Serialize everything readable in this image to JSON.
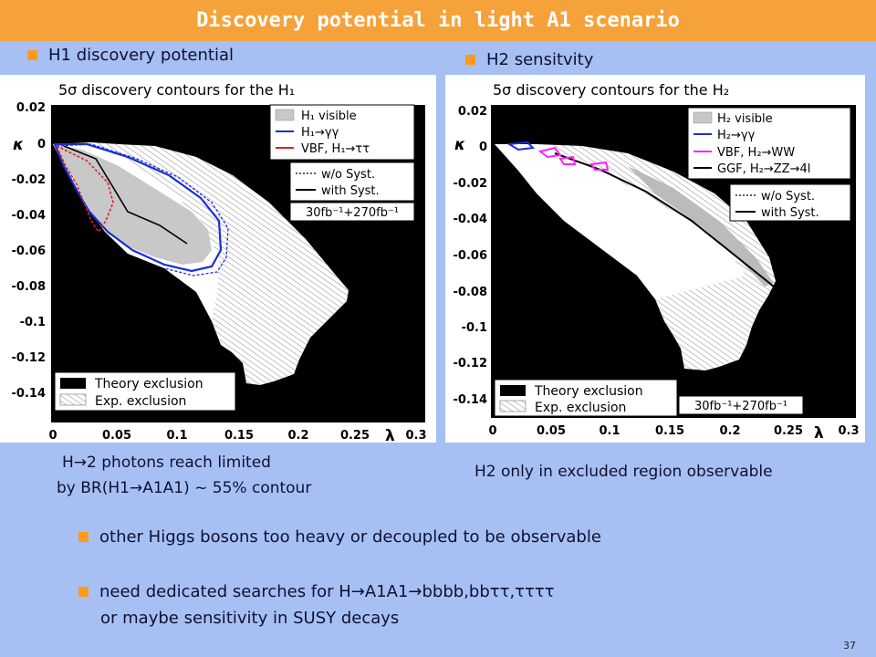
{
  "slide": {
    "title": "Discovery potential in light A1 scenario",
    "left_heading": "H1 discovery potential",
    "right_heading": "H2 sensitvity",
    "left_caption_1": "H→2 photons  reach limited",
    "left_caption_2": "by BR(H1→A1A1) ~ 55% contour",
    "right_caption": "H2 only in excluded region observable",
    "bullet_1": "other Higgs bosons too heavy or decoupled to be observable",
    "bullet_2_line1": "need dedicated searches for H→A1A1→bbbb,bbττ,ττττ",
    "bullet_2_line2": "or maybe sensitivity in SUSY decays",
    "page_number": "37"
  },
  "colors": {
    "accent": "#f5a23a",
    "background": "#a7c0f4",
    "bullet": "#ff9a1a",
    "blue_curve": "#1a2fd6",
    "red_curve": "#e02020",
    "magenta_curve": "#ff20ff"
  },
  "chart_data": [
    {
      "type": "contour",
      "title": "5σ discovery contours for the H₁",
      "xlabel": "λ",
      "ylabel": "κ",
      "x_ticks": [
        "0",
        "0.05",
        "0.1",
        "0.15",
        "0.2",
        "0.25",
        "0.3"
      ],
      "y_ticks": [
        "0.02",
        "0",
        "-0.02",
        "-0.04",
        "-0.06",
        "-0.08",
        "-0.1",
        "-0.12",
        "-0.14"
      ],
      "xlim": [
        0,
        0.3
      ],
      "ylim": [
        -0.15,
        0.025
      ],
      "legend_top": [
        "H₁ visible",
        "H₁→γγ",
        "VBF, H₁→ττ"
      ],
      "legend_syst": [
        "w/o Syst.",
        "with Syst."
      ],
      "luminosity": "30fb⁻¹+270fb⁻¹",
      "legend_bottom": [
        "Theory exclusion",
        "Exp. exclusion"
      ]
    },
    {
      "type": "contour",
      "title": "5σ discovery contours for the H₂",
      "xlabel": "λ",
      "ylabel": "κ",
      "x_ticks": [
        "0",
        "0.05",
        "0.1",
        "0.15",
        "0.2",
        "0.25",
        "0.3"
      ],
      "y_ticks": [
        "0.02",
        "0",
        "-0.02",
        "-0.04",
        "-0.06",
        "-0.08",
        "-0.1",
        "-0.12",
        "-0.14"
      ],
      "xlim": [
        0,
        0.3
      ],
      "ylim": [
        -0.15,
        0.025
      ],
      "legend_top": [
        "H₂ visible",
        "H₂→γγ",
        "VBF, H₂→WW",
        "GGF, H₂→ZZ→4l"
      ],
      "legend_syst": [
        "w/o Syst.",
        "with Syst."
      ],
      "luminosity": "30fb⁻¹+270fb⁻¹",
      "legend_bottom": [
        "Theory exclusion",
        "Exp. exclusion"
      ]
    }
  ]
}
